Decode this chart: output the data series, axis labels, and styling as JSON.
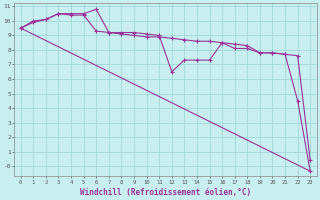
{
  "background_color": "#c8eef0",
  "grid_color": "#a0d8d8",
  "line_color": "#993399",
  "xlabel": "Windchill (Refroidissement éolien,°C)",
  "xlim": [
    -0.5,
    23.5
  ],
  "ylim": [
    -0.7,
    11.2
  ],
  "ytick_positions": [
    0,
    1,
    2,
    3,
    4,
    5,
    6,
    7,
    8,
    9,
    10,
    11
  ],
  "ytick_labels": [
    "-0",
    "1",
    "2",
    "3",
    "4",
    "5",
    "6",
    "7",
    "8",
    "9",
    "10",
    "11"
  ],
  "xticks": [
    0,
    1,
    2,
    3,
    4,
    5,
    6,
    7,
    8,
    9,
    10,
    11,
    12,
    13,
    14,
    15,
    16,
    17,
    18,
    19,
    20,
    21,
    22,
    23
  ],
  "series1_x": [
    0,
    1,
    2,
    3,
    4,
    5,
    6,
    7,
    8,
    9,
    10,
    11,
    12,
    13,
    14,
    15,
    16,
    17,
    18,
    19,
    20,
    21,
    22,
    23
  ],
  "series1_y": [
    9.5,
    10.0,
    10.1,
    10.5,
    10.4,
    10.4,
    9.3,
    9.2,
    9.1,
    9.0,
    8.9,
    8.9,
    8.8,
    8.7,
    8.6,
    8.6,
    8.5,
    8.4,
    8.3,
    7.8,
    7.8,
    7.7,
    7.6,
    0.4
  ],
  "series2_x": [
    0,
    1,
    2,
    3,
    4,
    5,
    6,
    7,
    8,
    9,
    10,
    11,
    12,
    13,
    14,
    15,
    16,
    17,
    18,
    19,
    20,
    21,
    22,
    23
  ],
  "series2_y": [
    9.5,
    9.9,
    10.1,
    10.5,
    10.5,
    10.5,
    10.8,
    9.2,
    9.2,
    9.2,
    9.1,
    9.0,
    6.5,
    7.3,
    7.3,
    7.3,
    8.5,
    8.1,
    8.1,
    7.8,
    7.8,
    7.7,
    4.5,
    -0.35
  ],
  "series3_x": [
    0,
    23
  ],
  "series3_y": [
    9.5,
    -0.35
  ]
}
